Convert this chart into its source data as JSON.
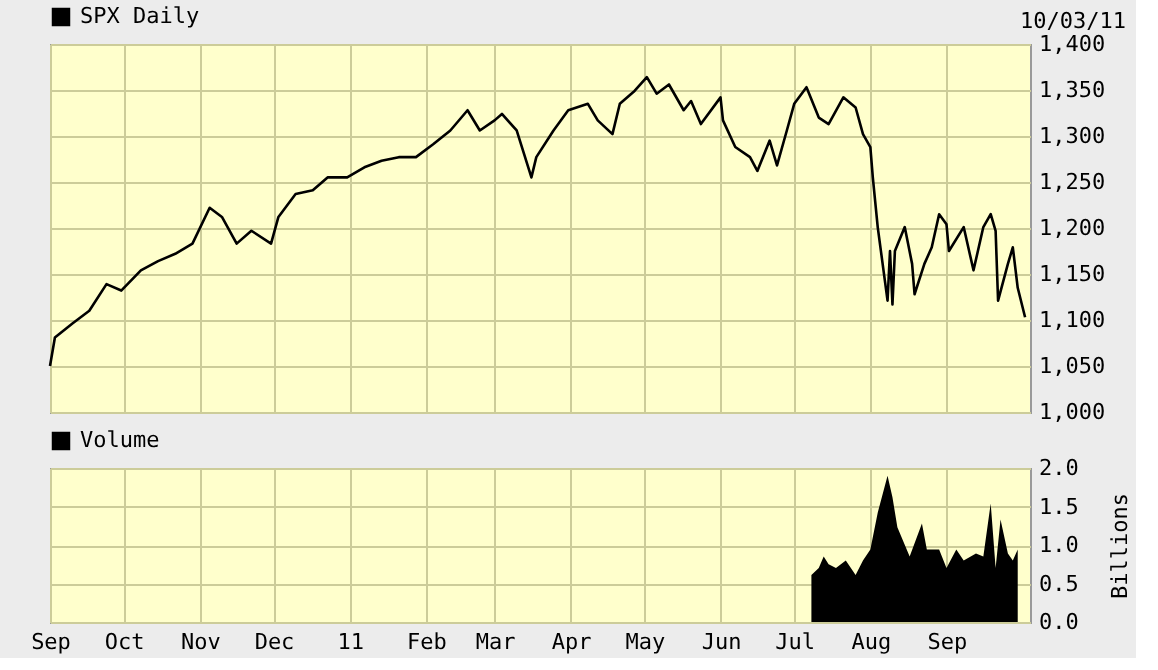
{
  "chart_data": [
    {
      "type": "line",
      "legend": "top left",
      "grid": true,
      "tick_labels": "y",
      "annotations": [
        "10/03/11"
      ],
      "xlim": [
        "2010-09-01",
        "2011-10-05"
      ],
      "xticks": [
        {
          "value": "2010-09-01",
          "label": null
        },
        {
          "value": "2010-10-01",
          "label": null
        },
        {
          "value": "2010-11-01",
          "label": null
        },
        {
          "value": "2010-12-01",
          "label": null
        },
        {
          "value": "2011-01-01",
          "label": null
        },
        {
          "value": "2011-02-01",
          "label": null
        },
        {
          "value": "2011-03-01",
          "label": null
        },
        {
          "value": "2011-04-01",
          "label": null
        },
        {
          "value": "2011-05-01",
          "label": null
        },
        {
          "value": "2011-06-01",
          "label": null
        },
        {
          "value": "2011-07-01",
          "label": null
        },
        {
          "value": "2011-08-01",
          "label": null
        },
        {
          "value": "2011-09-01",
          "label": null
        }
      ],
      "ylim": [
        1000,
        1400
      ],
      "yticks": [
        {
          "value": 1000,
          "label": "1,000"
        },
        {
          "value": 1050,
          "label": "1,050"
        },
        {
          "value": 1100,
          "label": "1,100"
        },
        {
          "value": 1150,
          "label": "1,150"
        },
        {
          "value": 1200,
          "label": "1,200"
        },
        {
          "value": 1250,
          "label": "1,250"
        },
        {
          "value": 1300,
          "label": "1,300"
        },
        {
          "value": 1350,
          "label": "1,350"
        },
        {
          "value": 1400,
          "label": "1,400"
        }
      ],
      "series": [
        {
          "name": "SPX Daily",
          "color": "#000000",
          "x": [
            "2010-09-01",
            "2010-09-03",
            "2010-09-10",
            "2010-09-17",
            "2010-09-24",
            "2010-09-30",
            "2010-10-08",
            "2010-10-15",
            "2010-10-22",
            "2010-10-29",
            "2010-11-05",
            "2010-11-10",
            "2010-11-16",
            "2010-11-22",
            "2010-11-30",
            "2010-12-03",
            "2010-12-10",
            "2010-12-17",
            "2010-12-23",
            "2010-12-31",
            "2011-01-07",
            "2011-01-14",
            "2011-01-21",
            "2011-01-28",
            "2011-02-04",
            "2011-02-11",
            "2011-02-18",
            "2011-02-23",
            "2011-03-01",
            "2011-03-04",
            "2011-03-10",
            "2011-03-16",
            "2011-03-18",
            "2011-03-25",
            "2011-03-31",
            "2011-04-08",
            "2011-04-12",
            "2011-04-18",
            "2011-04-21",
            "2011-04-27",
            "2011-05-02",
            "2011-05-06",
            "2011-05-11",
            "2011-05-17",
            "2011-05-20",
            "2011-05-24",
            "2011-06-01",
            "2011-06-02",
            "2011-06-07",
            "2011-06-13",
            "2011-06-16",
            "2011-06-21",
            "2011-06-24",
            "2011-06-28",
            "2011-07-01",
            "2011-07-06",
            "2011-07-11",
            "2011-07-15",
            "2011-07-21",
            "2011-07-26",
            "2011-07-29",
            "2011-08-01",
            "2011-08-02",
            "2011-08-04",
            "2011-08-08",
            "2011-08-09",
            "2011-08-10",
            "2011-08-11",
            "2011-08-15",
            "2011-08-18",
            "2011-08-19",
            "2011-08-23",
            "2011-08-26",
            "2011-08-29",
            "2011-09-01",
            "2011-09-02",
            "2011-09-08",
            "2011-09-12",
            "2011-09-16",
            "2011-09-19",
            "2011-09-21",
            "2011-09-22",
            "2011-09-26",
            "2011-09-28",
            "2011-09-30",
            "2011-10-03"
          ],
          "values": [
            1050,
            1081,
            1096,
            1110,
            1139,
            1132,
            1154,
            1164,
            1172,
            1183,
            1222,
            1212,
            1183,
            1197,
            1183,
            1212,
            1237,
            1241,
            1255,
            1255,
            1266,
            1273,
            1277,
            1277,
            1291,
            1306,
            1328,
            1306,
            1317,
            1324,
            1306,
            1255,
            1277,
            1306,
            1328,
            1335,
            1317,
            1302,
            1335,
            1349,
            1364,
            1346,
            1356,
            1328,
            1338,
            1313,
            1342,
            1317,
            1288,
            1277,
            1262,
            1295,
            1268,
            1306,
            1335,
            1353,
            1320,
            1313,
            1342,
            1331,
            1302,
            1288,
            1255,
            1201,
            1121,
            1175,
            1117,
            1175,
            1201,
            1161,
            1128,
            1161,
            1179,
            1215,
            1204,
            1175,
            1201,
            1154,
            1201,
            1215,
            1197,
            1121,
            1161,
            1179,
            1135,
            1103
          ]
        }
      ]
    },
    {
      "type": "area",
      "legend": "top left",
      "grid": true,
      "ylabel": "Billions",
      "xlim": [
        "2010-09-01",
        "2011-10-05"
      ],
      "xticks": [
        {
          "value": "2010-09-01",
          "label": "Sep"
        },
        {
          "value": "2010-10-01",
          "label": "Oct"
        },
        {
          "value": "2010-11-01",
          "label": "Nov"
        },
        {
          "value": "2010-12-01",
          "label": "Dec"
        },
        {
          "value": "2011-01-01",
          "label": "11"
        },
        {
          "value": "2011-02-01",
          "label": "Feb"
        },
        {
          "value": "2011-03-01",
          "label": "Mar"
        },
        {
          "value": "2011-04-01",
          "label": "Apr"
        },
        {
          "value": "2011-05-01",
          "label": "May"
        },
        {
          "value": "2011-06-01",
          "label": "Jun"
        },
        {
          "value": "2011-07-01",
          "label": "Jul"
        },
        {
          "value": "2011-08-01",
          "label": "Aug"
        },
        {
          "value": "2011-09-01",
          "label": "Sep"
        }
      ],
      "ylim": [
        0,
        2
      ],
      "yticks": [
        {
          "value": 0,
          "label": "0.0"
        },
        {
          "value": 0.5,
          "label": "0.5"
        },
        {
          "value": 1,
          "label": "1.0"
        },
        {
          "value": 1.5,
          "label": "1.5"
        },
        {
          "value": 2,
          "label": "2.0"
        }
      ],
      "series": [
        {
          "name": "Volume",
          "color": "#000000",
          "x": [
            "2011-07-08",
            "2011-07-11",
            "2011-07-13",
            "2011-07-15",
            "2011-07-18",
            "2011-07-22",
            "2011-07-26",
            "2011-07-29",
            "2011-08-01",
            "2011-08-04",
            "2011-08-08",
            "2011-08-10",
            "2011-08-12",
            "2011-08-17",
            "2011-08-22",
            "2011-08-24",
            "2011-08-29",
            "2011-09-01",
            "2011-09-05",
            "2011-09-08",
            "2011-09-13",
            "2011-09-16",
            "2011-09-19",
            "2011-09-21",
            "2011-09-23",
            "2011-09-26",
            "2011-09-28",
            "2011-09-30"
          ],
          "values": [
            0.61,
            0.7,
            0.85,
            0.75,
            0.7,
            0.8,
            0.61,
            0.8,
            0.94,
            1.42,
            1.9,
            1.62,
            1.23,
            0.85,
            1.28,
            0.94,
            0.94,
            0.7,
            0.94,
            0.8,
            0.89,
            0.85,
            1.54,
            0.7,
            1.33,
            0.89,
            0.8,
            0.94
          ]
        }
      ]
    }
  ]
}
